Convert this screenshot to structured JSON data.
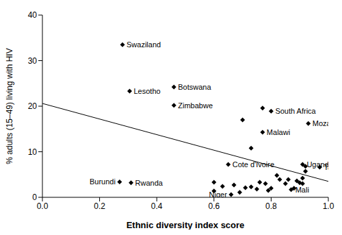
{
  "chart_data": {
    "type": "scatter",
    "xlabel": "Ethnic diversity index score",
    "ylabel": "% adults (15–49) living with HIV",
    "xlim": [
      0,
      1
    ],
    "xticks": [
      {
        "value": 0,
        "label": "0.0"
      },
      {
        "value": 0.2,
        "label": "0.2"
      },
      {
        "value": 0.4,
        "label": "0.4"
      },
      {
        "value": 0.6,
        "label": "0.6"
      },
      {
        "value": 0.8,
        "label": "0.8"
      },
      {
        "value": 1,
        "label": "1.0"
      }
    ],
    "ylim": [
      0,
      40
    ],
    "yticks": [
      0,
      10,
      20,
      30,
      40
    ],
    "series": [
      {
        "type": "scatter",
        "marker": "diamond",
        "color": "#000000",
        "x": [
          0.28,
          0.305,
          0.46,
          0.46,
          0.27,
          0.31,
          0.8,
          0.77,
          0.93,
          0.77,
          0.7,
          0.73,
          0.91,
          0.66,
          0.97,
          0.65,
          0.87,
          0.6,
          0.6,
          0.63,
          0.67,
          0.69,
          0.71,
          0.73,
          0.75,
          0.76,
          0.78,
          0.79,
          0.8,
          0.82,
          0.83,
          0.85,
          0.86,
          0.88,
          0.89,
          0.9,
          0.91,
          0.92,
          0.92,
          0.91
        ],
        "values": [
          33.5,
          23.3,
          24.2,
          20.2,
          3.4,
          3.2,
          18.9,
          19.6,
          16.2,
          14.3,
          17.0,
          10.8,
          7.2,
          0.6,
          6.6,
          7.2,
          1.7,
          3.3,
          1.4,
          2.4,
          2.7,
          1.1,
          2.1,
          2.3,
          1.8,
          3.3,
          3.0,
          1.5,
          2.0,
          4.8,
          3.9,
          3.0,
          3.9,
          2.0,
          3.6,
          3.2,
          4.2,
          5.7,
          6.8,
          3.0
        ],
        "point_labels": [
          "Swaziland",
          "Lesotho",
          "Botswana",
          "Zimbabwe",
          "Burundi",
          "Rwanda",
          "South Africa",
          null,
          "Mozambique",
          "Malawi",
          null,
          null,
          "Uganda",
          "Niger",
          "Tanzania",
          "Cote d'Ivoire",
          "Mali",
          null,
          null,
          null,
          null,
          null,
          null,
          null,
          null,
          null,
          null,
          null,
          null,
          null,
          null,
          null,
          null,
          null,
          null,
          null,
          null,
          null,
          null,
          null
        ]
      },
      {
        "type": "line",
        "color": "#000000",
        "x": [
          0,
          1
        ],
        "values": [
          20.6,
          3.5
        ]
      }
    ]
  }
}
